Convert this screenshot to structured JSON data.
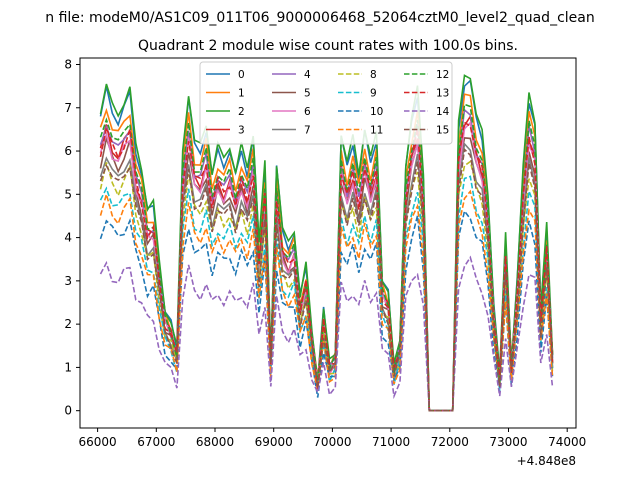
{
  "chart_data": {
    "type": "line",
    "suptitle": "n file: modeM0/AS1C09_011T06_9000006468_52064cztM0_level2_quad_clean",
    "title": "Quadrant 2 module wise count rates with 100.0s bins.",
    "xlabel": "",
    "ylabel": "",
    "offset_text": "+4.848e8",
    "xlim": [
      65700,
      74150
    ],
    "ylim": [
      -0.4,
      8.15
    ],
    "xticks": [
      66000,
      67000,
      68000,
      69000,
      70000,
      71000,
      72000,
      73000,
      74000
    ],
    "yticks": [
      0,
      1,
      2,
      3,
      4,
      5,
      6,
      7,
      8
    ],
    "legend_location": "upper-center",
    "legend_columns": 4,
    "x": [
      66050,
      66150,
      66250,
      66350,
      66450,
      66550,
      66650,
      66750,
      66850,
      66950,
      67050,
      67150,
      67250,
      67350,
      67450,
      67550,
      67650,
      67750,
      67850,
      67950,
      68050,
      68150,
      68250,
      68350,
      68450,
      68550,
      68650,
      68750,
      68850,
      68950,
      69050,
      69150,
      69250,
      69350,
      69450,
      69550,
      69650,
      69750,
      69850,
      69950,
      70050,
      70150,
      70250,
      70350,
      70450,
      70550,
      70650,
      70750,
      70850,
      70950,
      71050,
      71150,
      71250,
      71350,
      71450,
      71550,
      71650,
      71750,
      71850,
      71950,
      72050,
      72150,
      72250,
      72350,
      72450,
      72550,
      72650,
      72750,
      72850,
      72950,
      73050,
      73150,
      73250,
      73350,
      73450,
      73550,
      73650,
      73750
    ],
    "base_profile": [
      6.8,
      7.4,
      6.9,
      6.7,
      7.0,
      7.3,
      6.0,
      5.5,
      4.6,
      4.7,
      3.4,
      2.3,
      2.0,
      1.4,
      5.9,
      7.2,
      6.1,
      6.0,
      6.5,
      5.4,
      6.0,
      5.7,
      6.0,
      5.4,
      6.0,
      5.5,
      6.3,
      3.8,
      5.6,
      1.3,
      5.6,
      4.1,
      3.8,
      4.1,
      2.6,
      3.3,
      1.8,
      0.7,
      2.3,
      1.1,
      1.3,
      6.3,
      5.6,
      6.2,
      5.4,
      6.4,
      5.7,
      6.3,
      3.0,
      2.7,
      1.0,
      1.6,
      5.6,
      6.6,
      7.3,
      5.4,
      0.0,
      0.0,
      0.0,
      0.0,
      0.0,
      6.5,
      7.6,
      7.6,
      6.7,
      6.3,
      4.9,
      2.4,
      0.8,
      4.0,
      1.1,
      3.0,
      5.5,
      7.2,
      6.6,
      2.3,
      4.2,
      1.3
    ],
    "series": [
      {
        "name": "0",
        "color": "#1f77b4",
        "dash": "solid",
        "scale": 1.0,
        "wiggle": 0.1
      },
      {
        "name": "1",
        "color": "#ff7f0e",
        "dash": "solid",
        "scale": 0.95,
        "wiggle": 0.12
      },
      {
        "name": "2",
        "color": "#2ca02c",
        "dash": "solid",
        "scale": 1.02,
        "wiggle": 0.08
      },
      {
        "name": "3",
        "color": "#d62728",
        "dash": "solid",
        "scale": 0.88,
        "wiggle": 0.14
      },
      {
        "name": "4",
        "color": "#9467bd",
        "dash": "solid",
        "scale": 0.9,
        "wiggle": 0.11
      },
      {
        "name": "5",
        "color": "#8c564b",
        "dash": "solid",
        "scale": 0.84,
        "wiggle": 0.13
      },
      {
        "name": "6",
        "color": "#e377c2",
        "dash": "solid",
        "scale": 0.86,
        "wiggle": 0.12
      },
      {
        "name": "7",
        "color": "#7f7f7f",
        "dash": "solid",
        "scale": 0.8,
        "wiggle": 0.1
      },
      {
        "name": "8",
        "color": "#bcbd22",
        "dash": "dashed",
        "scale": 0.76,
        "wiggle": 0.12
      },
      {
        "name": "9",
        "color": "#17becf",
        "dash": "dashed",
        "scale": 0.7,
        "wiggle": 0.11
      },
      {
        "name": "10",
        "color": "#1f77b4",
        "dash": "dashed",
        "scale": 0.6,
        "wiggle": 0.13
      },
      {
        "name": "11",
        "color": "#ff7f0e",
        "dash": "dashed",
        "scale": 0.66,
        "wiggle": 0.12
      },
      {
        "name": "12",
        "color": "#2ca02c",
        "dash": "dashed",
        "scale": 0.92,
        "wiggle": 0.1
      },
      {
        "name": "13",
        "color": "#d62728",
        "dash": "dashed",
        "scale": 0.88,
        "wiggle": 0.12
      },
      {
        "name": "14",
        "color": "#9467bd",
        "dash": "dashed",
        "scale": 0.45,
        "wiggle": 0.14
      },
      {
        "name": "15",
        "color": "#8c564b",
        "dash": "dashed",
        "scale": 0.78,
        "wiggle": 0.11
      }
    ]
  }
}
